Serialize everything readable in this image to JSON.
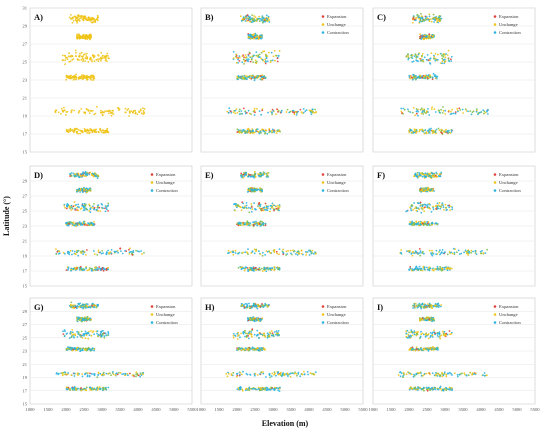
{
  "figure": {
    "xlabel": "Elevation (m)",
    "ylabel": "Latitude (°)"
  },
  "colors": {
    "expansion": "#e2413a",
    "unchange": "#f0c419",
    "contraction": "#2bb3df",
    "green": "#7fbf4a"
  },
  "chart_data": {
    "type": "scatter",
    "xlim": [
      1000,
      5500
    ],
    "ylim": [
      15,
      31
    ],
    "xticks": [
      1000,
      1500,
      2000,
      2500,
      3000,
      3500,
      4000,
      4500,
      5000,
      5500
    ],
    "yticks": [
      15,
      17,
      19,
      21,
      23,
      25,
      27,
      29,
      31
    ],
    "yticks_row2": [
      15,
      17,
      19,
      21,
      23,
      25,
      27,
      29
    ],
    "yticks_row3": [
      15,
      17,
      19,
      21,
      23,
      25,
      27,
      29
    ],
    "grid": true,
    "legend_position": "top-right",
    "legend_entries": [
      "Expansion",
      "Unchange",
      "Contraction"
    ],
    "clusters": [
      {
        "x_range": [
          2100,
          2900
        ],
        "lat": 29.8,
        "spread": 0.6
      },
      {
        "x_range": [
          2300,
          2700
        ],
        "lat": 27.8,
        "spread": 0.4
      },
      {
        "x_range": [
          1900,
          3200
        ],
        "lat": 25.5,
        "spread": 0.9
      },
      {
        "x_range": [
          2000,
          2800
        ],
        "lat": 23.3,
        "spread": 0.4
      },
      {
        "x_range": [
          1700,
          4200
        ],
        "lat": 19.5,
        "spread": 0.6
      },
      {
        "x_range": [
          2000,
          3200
        ],
        "lat": 17.3,
        "spread": 0.4
      }
    ],
    "panels": [
      {
        "label": "A)",
        "legend": false,
        "mix": {
          "unchange": 1.0,
          "contraction": 0.0,
          "expansion": 0.0,
          "green": 0.0
        }
      },
      {
        "label": "B)",
        "legend": true,
        "mix": {
          "unchange": 0.3,
          "contraction": 0.4,
          "expansion": 0.1,
          "green": 0.2
        }
      },
      {
        "label": "C)",
        "legend": true,
        "mix": {
          "unchange": 0.3,
          "contraction": 0.4,
          "expansion": 0.08,
          "green": 0.22
        }
      },
      {
        "label": "D)",
        "legend": true,
        "mix": {
          "unchange": 0.28,
          "contraction": 0.48,
          "expansion": 0.1,
          "green": 0.14
        }
      },
      {
        "label": "E)",
        "legend": true,
        "mix": {
          "unchange": 0.32,
          "contraction": 0.44,
          "expansion": 0.06,
          "green": 0.18
        }
      },
      {
        "label": "F)",
        "legend": true,
        "mix": {
          "unchange": 0.3,
          "contraction": 0.46,
          "expansion": 0.06,
          "green": 0.18
        }
      },
      {
        "label": "G)",
        "legend": true,
        "mix": {
          "unchange": 0.28,
          "contraction": 0.52,
          "expansion": 0.04,
          "green": 0.16
        }
      },
      {
        "label": "H)",
        "legend": true,
        "mix": {
          "unchange": 0.3,
          "contraction": 0.5,
          "expansion": 0.04,
          "green": 0.16
        }
      },
      {
        "label": "I)",
        "legend": true,
        "mix": {
          "unchange": 0.34,
          "contraction": 0.44,
          "expansion": 0.04,
          "green": 0.18
        }
      }
    ]
  }
}
